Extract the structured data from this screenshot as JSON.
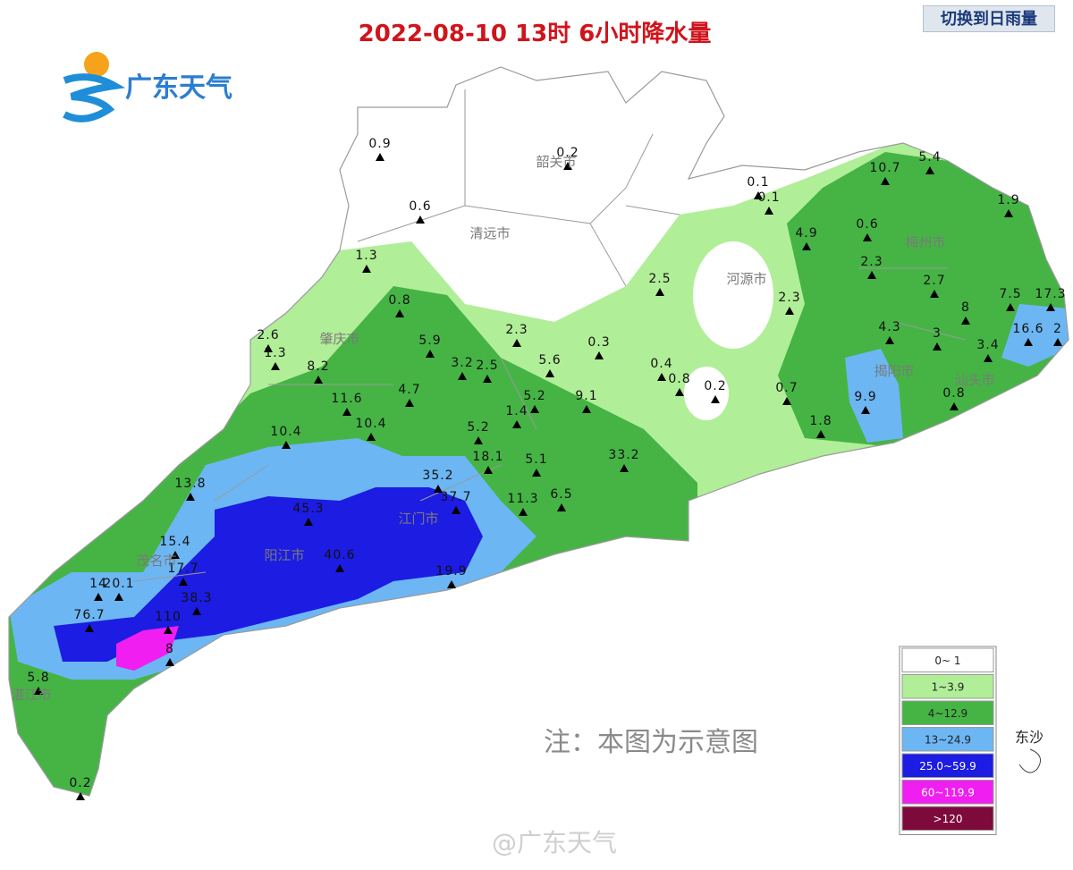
{
  "header": {
    "title": "2022-08-10 13时 6小时降水量",
    "switch_button": "切换到日雨量",
    "logo": "广东天气"
  },
  "map": {
    "cities": [
      "韶关市",
      "清远市",
      "河源市",
      "梅州市",
      "肇庆市",
      "江门市",
      "阳江市",
      "茂名市",
      "湛江市",
      "揭阳市",
      "汕头市"
    ],
    "stations": [
      0.9,
      0.2,
      0.1,
      0.1,
      0.6,
      5.4,
      10.7,
      1.9,
      4.9,
      0.6,
      1.3,
      2.3,
      2.5,
      2.7,
      0.8,
      2.3,
      7.5,
      17.3,
      2.6,
      2.3,
      0.3,
      5.9,
      4.3,
      3,
      8,
      16.6,
      2,
      3.4,
      1.3,
      3.2,
      2.5,
      5.6,
      0.4,
      0.8,
      0.2,
      8.2,
      11.6,
      4.7,
      5.2,
      9.1,
      1.4,
      0.7,
      9.9,
      0.8,
      1.8,
      10.4,
      10.4,
      5.2,
      18.1,
      5.1,
      33.2,
      13.8,
      35.2,
      37.7,
      11.3,
      6.5,
      45.3,
      15.4,
      17.7,
      40.6,
      19.9,
      14,
      20.1,
      38.3,
      76.7,
      110,
      8,
      5.8,
      0.2
    ],
    "island_label": "东沙"
  },
  "legend": [
    {
      "label": "0~ 1",
      "color": "#ffffff"
    },
    {
      "label": "1~3.9",
      "color": "#b1ee98"
    },
    {
      "label": "4~12.9",
      "color": "#45b445"
    },
    {
      "label": "13~24.9",
      "color": "#6cb6f4"
    },
    {
      "label": "25.0~59.9",
      "color": "#1c1ce2"
    },
    {
      "label": "60~119.9",
      "color": "#f01ef0"
    },
    {
      "label": ">120",
      "color": "#7e0a3c"
    }
  ],
  "note": "注：本图为示意图",
  "watermark": "@广东天气"
}
